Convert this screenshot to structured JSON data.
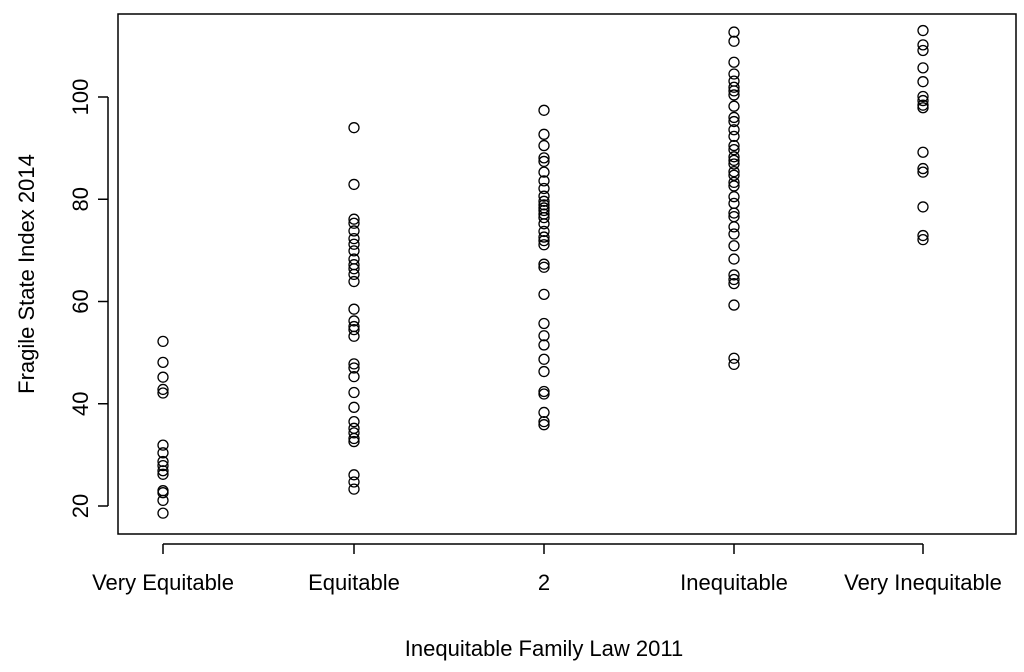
{
  "chart_data": {
    "type": "scatter",
    "xlabel": "Inequitable Family Law 2011",
    "ylabel": "Fragile State Index 2014",
    "categories": [
      "Very Equitable",
      "Equitable",
      "2",
      "Inequitable",
      "Very Inequitable"
    ],
    "yticks": [
      20,
      40,
      60,
      80,
      100
    ],
    "ylim": [
      15,
      116
    ],
    "grid": false,
    "series": [
      {
        "category": "Very Equitable",
        "values": [
          52.2,
          48.1,
          45.2,
          42.8,
          42.1,
          31.9,
          30.4,
          28.7,
          27.9,
          26.9,
          26.2,
          23.0,
          22.6,
          21.1,
          18.6
        ]
      },
      {
        "category": "Equitable",
        "values": [
          94.0,
          82.9,
          76.1,
          75.3,
          73.8,
          72.3,
          71.2,
          69.9,
          68.3,
          67.2,
          66.4,
          65.3,
          63.9,
          58.5,
          56.2,
          55.1,
          54.5,
          53.2,
          47.8,
          47.0,
          45.3,
          42.2,
          39.3,
          36.5,
          35.2,
          34.3,
          33.2,
          32.6,
          26.1,
          24.7,
          23.3
        ]
      },
      {
        "category": "2",
        "values": [
          97.4,
          92.7,
          90.5,
          88.1,
          87.4,
          85.3,
          83.6,
          82.1,
          80.6,
          79.6,
          78.9,
          78.3,
          77.8,
          77.1,
          76.4,
          75.2,
          73.7,
          72.6,
          71.9,
          71.1,
          67.3,
          66.7,
          61.4,
          55.7,
          53.3,
          51.5,
          48.7,
          46.3,
          42.4,
          41.9,
          38.3,
          36.5,
          35.9
        ]
      },
      {
        "category": "Inequitable",
        "values": [
          112.7,
          110.9,
          106.8,
          104.5,
          103.1,
          101.9,
          101.2,
          100.4,
          98.2,
          96.0,
          95.2,
          93.6,
          92.3,
          90.5,
          89.7,
          88.3,
          87.6,
          86.9,
          85.4,
          84.7,
          83.3,
          82.6,
          80.5,
          79.2,
          77.3,
          76.6,
          74.6,
          73.2,
          70.9,
          68.3,
          65.2,
          64.3,
          63.5,
          59.3,
          48.9,
          47.7
        ]
      },
      {
        "category": "Very Inequitable",
        "values": [
          113.0,
          110.2,
          109.1,
          105.7,
          103.0,
          100.1,
          99.3,
          98.4,
          97.9,
          89.2,
          86.0,
          85.3,
          78.5,
          72.9,
          72.1
        ]
      }
    ]
  }
}
